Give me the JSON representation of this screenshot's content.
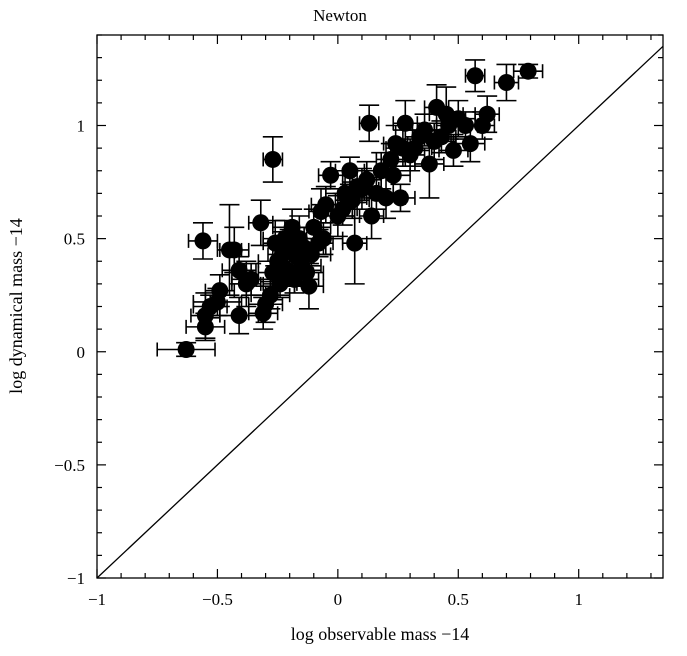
{
  "chart_data": {
    "type": "scatter",
    "title": "Newton",
    "xlabel": "log observable mass −14",
    "ylabel": "log dynamical mass −14",
    "xlim": [
      -1,
      1.35
    ],
    "ylim": [
      -1,
      1.4
    ],
    "xticks": [
      -1,
      -0.5,
      0,
      0.5,
      1
    ],
    "yticks": [
      -1,
      -0.5,
      0,
      0.5,
      1
    ],
    "xtick_labels": [
      "−1",
      "−0.5",
      "0",
      "0.5",
      "1"
    ],
    "ytick_labels": [
      "−1",
      "−0.5",
      "0",
      "0.5",
      "1"
    ],
    "grid": false,
    "reference_line": "y = x",
    "marker_color": "#000000",
    "points": {
      "x": [
        -0.63,
        -0.56,
        -0.27,
        -0.55,
        -0.55,
        -0.53,
        -0.5,
        -0.49,
        -0.45,
        -0.43,
        -0.41,
        -0.41,
        -0.38,
        -0.36,
        -0.32,
        -0.31,
        -0.3,
        -0.28,
        -0.27,
        -0.26,
        -0.25,
        -0.24,
        -0.23,
        -0.22,
        -0.21,
        -0.2,
        -0.19,
        -0.18,
        -0.17,
        -0.16,
        -0.15,
        -0.14,
        -0.13,
        -0.12,
        -0.11,
        -0.1,
        -0.08,
        -0.07,
        -0.06,
        -0.05,
        -0.03,
        0.0,
        0.02,
        0.03,
        0.05,
        0.06,
        0.07,
        0.08,
        0.1,
        0.12,
        0.13,
        0.14,
        0.16,
        0.18,
        0.2,
        0.22,
        0.23,
        0.24,
        0.26,
        0.27,
        0.28,
        0.3,
        0.32,
        0.34,
        0.36,
        0.38,
        0.4,
        0.41,
        0.43,
        0.45,
        0.46,
        0.48,
        0.5,
        0.53,
        0.55,
        0.57,
        0.6,
        0.62,
        0.7,
        0.79
      ],
      "y": [
        0.01,
        0.49,
        0.85,
        0.11,
        0.16,
        0.2,
        0.22,
        0.27,
        0.45,
        0.45,
        0.16,
        0.36,
        0.3,
        0.32,
        0.57,
        0.17,
        0.21,
        0.25,
        0.35,
        0.48,
        0.4,
        0.3,
        0.43,
        0.5,
        0.36,
        0.45,
        0.55,
        0.32,
        0.42,
        0.5,
        0.38,
        0.46,
        0.35,
        0.29,
        0.43,
        0.55,
        0.48,
        0.62,
        0.5,
        0.65,
        0.78,
        0.6,
        0.63,
        0.7,
        0.8,
        0.67,
        0.48,
        0.73,
        0.72,
        0.76,
        1.01,
        0.6,
        0.7,
        0.8,
        0.68,
        0.85,
        0.78,
        0.92,
        0.68,
        0.9,
        1.01,
        0.87,
        0.9,
        0.95,
        0.98,
        0.83,
        0.93,
        1.08,
        0.95,
        1.05,
        1.0,
        0.89,
        1.03,
        1.0,
        0.92,
        1.22,
        1.0,
        1.05,
        1.19,
        1.24
      ],
      "xerr": [
        0.12,
        0.06,
        0.04,
        0.08,
        0.06,
        0.07,
        0.1,
        0.06,
        0.05,
        0.06,
        0.08,
        0.07,
        0.06,
        0.08,
        0.05,
        0.06,
        0.07,
        0.08,
        0.06,
        0.05,
        0.08,
        0.07,
        0.06,
        0.09,
        0.07,
        0.06,
        0.08,
        0.1,
        0.07,
        0.06,
        0.08,
        0.09,
        0.07,
        0.06,
        0.08,
        0.07,
        0.06,
        0.05,
        0.08,
        0.06,
        0.05,
        0.07,
        0.06,
        0.08,
        0.06,
        0.07,
        0.05,
        0.06,
        0.07,
        0.06,
        0.04,
        0.05,
        0.07,
        0.06,
        0.08,
        0.06,
        0.07,
        0.05,
        0.06,
        0.07,
        0.05,
        0.06,
        0.07,
        0.06,
        0.05,
        0.06,
        0.07,
        0.05,
        0.06,
        0.07,
        0.05,
        0.06,
        0.07,
        0.05,
        0.06,
        0.04,
        0.05,
        0.05,
        0.05,
        0.06
      ],
      "yerr": [
        0.03,
        0.08,
        0.1,
        0.06,
        0.1,
        0.05,
        0.06,
        0.07,
        0.2,
        0.1,
        0.08,
        0.06,
        0.1,
        0.07,
        0.1,
        0.07,
        0.08,
        0.06,
        0.12,
        0.1,
        0.08,
        0.06,
        0.1,
        0.08,
        0.07,
        0.09,
        0.08,
        0.06,
        0.07,
        0.1,
        0.08,
        0.09,
        0.06,
        0.1,
        0.07,
        0.08,
        0.06,
        0.1,
        0.07,
        0.08,
        0.06,
        0.09,
        0.07,
        0.1,
        0.06,
        0.08,
        0.18,
        0.07,
        0.09,
        0.08,
        0.08,
        0.1,
        0.07,
        0.08,
        0.09,
        0.07,
        0.1,
        0.08,
        0.06,
        0.08,
        0.1,
        0.07,
        0.08,
        0.06,
        0.07,
        0.15,
        0.08,
        0.1,
        0.07,
        0.12,
        0.06,
        0.07,
        0.08,
        0.06,
        0.08,
        0.07,
        0.06,
        0.08,
        0.08,
        0.03
      ]
    }
  }
}
